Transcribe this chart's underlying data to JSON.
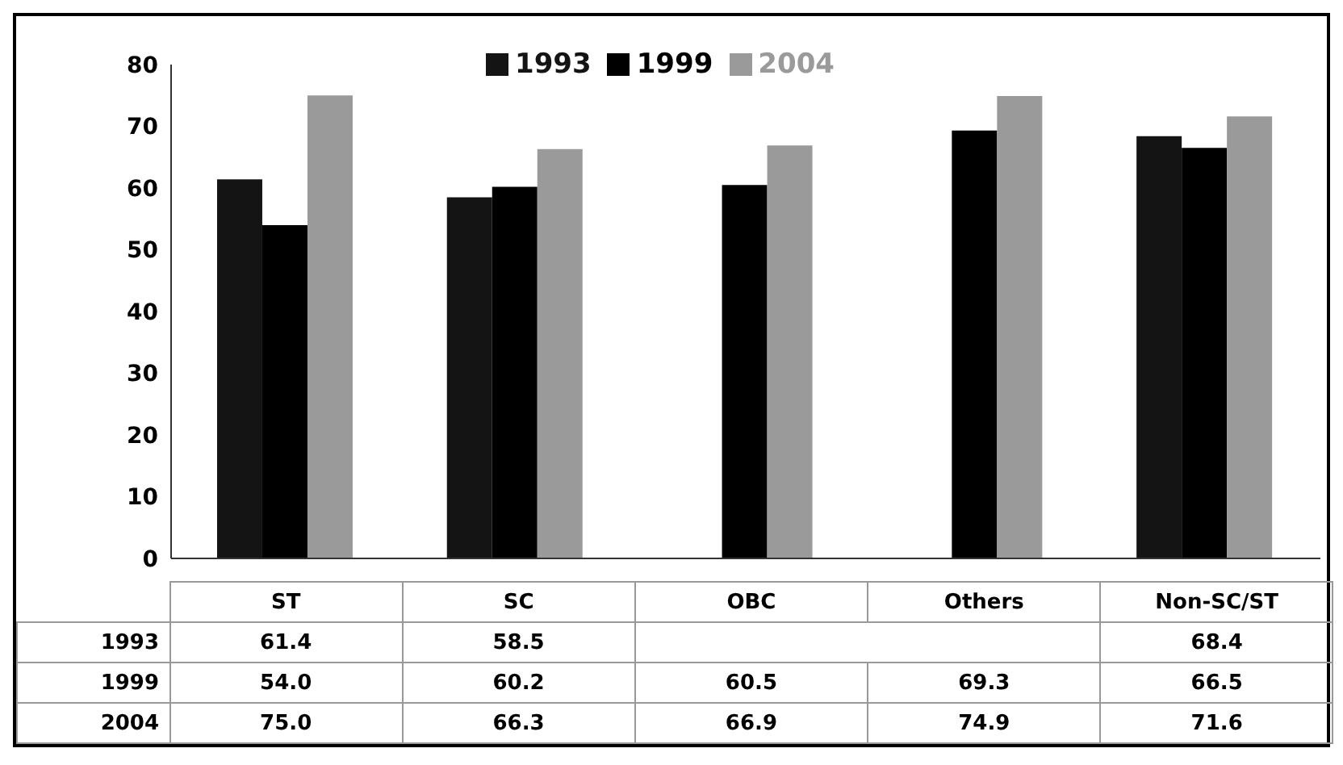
{
  "chart_data": {
    "type": "bar",
    "categories": [
      "ST",
      "SC",
      "OBC",
      "Others",
      "Non-SC/ST"
    ],
    "series": [
      {
        "name": "1993",
        "color": "#141414",
        "values": [
          61.4,
          58.5,
          null,
          null,
          68.4
        ],
        "value_labels": [
          "61.4",
          "58.5",
          null,
          null,
          "68.4"
        ]
      },
      {
        "name": "1999",
        "color": "#000000",
        "values": [
          54.0,
          60.2,
          60.5,
          69.3,
          66.5
        ],
        "value_labels": [
          "54.0",
          "60.2",
          "60.5",
          "69.3",
          "66.5"
        ]
      },
      {
        "name": "2004",
        "color": "#9a9a9a",
        "values": [
          75.0,
          66.3,
          66.9,
          74.9,
          71.6
        ],
        "value_labels": [
          "75.0",
          "66.3",
          "66.9",
          "74.9",
          "71.6"
        ]
      }
    ],
    "ylim": [
      0,
      80
    ],
    "yticks": [
      0,
      10,
      20,
      30,
      40,
      50,
      60,
      70,
      80
    ],
    "grid": false,
    "legend": "top"
  }
}
